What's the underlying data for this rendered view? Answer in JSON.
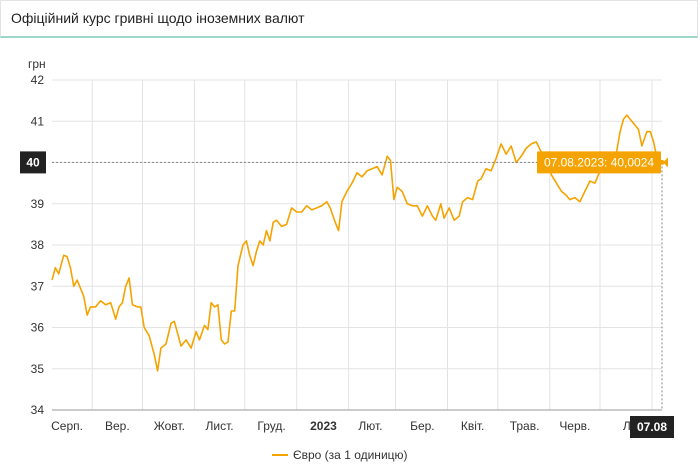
{
  "header": {
    "title": "Офіційний курс гривні щодо іноземних валют"
  },
  "colors": {
    "series": "#f5a300",
    "grid": "#e3e3e3",
    "axis": "#999999",
    "badge": "#222222",
    "tooltip": "#f5a300"
  },
  "chart_data": {
    "type": "line",
    "title": "",
    "xlabel": "",
    "ylabel": "грн",
    "ylim": [
      34,
      42
    ],
    "yticks": [
      34,
      35,
      36,
      37,
      38,
      39,
      40,
      41,
      42
    ],
    "xlim": [
      "2022-08-08",
      "2023-08-07"
    ],
    "xticks": [
      {
        "date": "2022-09-01",
        "label": "Серп."
      },
      {
        "date": "2022-10-01",
        "label": "Вер."
      },
      {
        "date": "2022-11-01",
        "label": "Жовт."
      },
      {
        "date": "2022-12-01",
        "label": "Лист."
      },
      {
        "date": "2023-01-01",
        "label": "Груд."
      },
      {
        "date": "2023-02-01",
        "label": "2023"
      },
      {
        "date": "2023-03-01",
        "label": "Лют."
      },
      {
        "date": "2023-04-01",
        "label": "Бер."
      },
      {
        "date": "2023-05-01",
        "label": "Квіт."
      },
      {
        "date": "2023-06-01",
        "label": "Трав."
      },
      {
        "date": "2023-07-01",
        "label": "Черв."
      },
      {
        "date": "2023-08-01",
        "label": "Л"
      }
    ],
    "grid": true,
    "legend_position": "bottom",
    "crosshair": {
      "date": "2023-08-07",
      "value": 40.0024,
      "y_badge": "40",
      "x_badge": "07.08",
      "tooltip": "07.08.2023: 40,0024"
    },
    "series": [
      {
        "name": "Євро (за 1 одиницю)",
        "points": [
          [
            "2022-08-08",
            37.15
          ],
          [
            "2022-08-10",
            37.45
          ],
          [
            "2022-08-12",
            37.3
          ],
          [
            "2022-08-15",
            37.75
          ],
          [
            "2022-08-17",
            37.72
          ],
          [
            "2022-08-19",
            37.45
          ],
          [
            "2022-08-21",
            37.0
          ],
          [
            "2022-08-23",
            37.15
          ],
          [
            "2022-08-25",
            36.95
          ],
          [
            "2022-08-27",
            36.75
          ],
          [
            "2022-08-29",
            36.3
          ],
          [
            "2022-08-31",
            36.5
          ],
          [
            "2022-09-03",
            36.5
          ],
          [
            "2022-09-06",
            36.65
          ],
          [
            "2022-09-09",
            36.55
          ],
          [
            "2022-09-12",
            36.6
          ],
          [
            "2022-09-15",
            36.2
          ],
          [
            "2022-09-17",
            36.5
          ],
          [
            "2022-09-19",
            36.6
          ],
          [
            "2022-09-21",
            37.0
          ],
          [
            "2022-09-23",
            37.2
          ],
          [
            "2022-09-25",
            36.55
          ],
          [
            "2022-09-28",
            36.5
          ],
          [
            "2022-09-30",
            36.5
          ],
          [
            "2022-10-02",
            36.0
          ],
          [
            "2022-10-05",
            35.8
          ],
          [
            "2022-10-08",
            35.35
          ],
          [
            "2022-10-10",
            34.95
          ],
          [
            "2022-10-12",
            35.5
          ],
          [
            "2022-10-15",
            35.6
          ],
          [
            "2022-10-18",
            36.1
          ],
          [
            "2022-10-20",
            36.15
          ],
          [
            "2022-10-22",
            35.85
          ],
          [
            "2022-10-24",
            35.55
          ],
          [
            "2022-10-27",
            35.7
          ],
          [
            "2022-10-30",
            35.5
          ],
          [
            "2022-11-02",
            35.9
          ],
          [
            "2022-11-04",
            35.7
          ],
          [
            "2022-11-07",
            36.05
          ],
          [
            "2022-11-09",
            35.95
          ],
          [
            "2022-11-11",
            36.6
          ],
          [
            "2022-11-13",
            36.5
          ],
          [
            "2022-11-15",
            36.55
          ],
          [
            "2022-11-17",
            35.7
          ],
          [
            "2022-11-19",
            35.6
          ],
          [
            "2022-11-21",
            35.65
          ],
          [
            "2022-11-23",
            36.4
          ],
          [
            "2022-11-25",
            36.4
          ],
          [
            "2022-11-27",
            37.5
          ],
          [
            "2022-11-30",
            38.0
          ],
          [
            "2022-12-02",
            38.1
          ],
          [
            "2022-12-04",
            37.75
          ],
          [
            "2022-12-06",
            37.5
          ],
          [
            "2022-12-08",
            37.85
          ],
          [
            "2022-12-10",
            38.1
          ],
          [
            "2022-12-12",
            38.0
          ],
          [
            "2022-12-14",
            38.35
          ],
          [
            "2022-12-16",
            38.1
          ],
          [
            "2022-12-18",
            38.55
          ],
          [
            "2022-12-20",
            38.6
          ],
          [
            "2022-12-23",
            38.45
          ],
          [
            "2022-12-26",
            38.5
          ],
          [
            "2022-12-29",
            38.9
          ],
          [
            "2023-01-01",
            38.8
          ],
          [
            "2023-01-04",
            38.8
          ],
          [
            "2023-01-07",
            38.95
          ],
          [
            "2023-01-10",
            38.85
          ],
          [
            "2023-01-13",
            38.9
          ],
          [
            "2023-01-16",
            38.95
          ],
          [
            "2023-01-19",
            39.05
          ],
          [
            "2023-01-21",
            38.9
          ],
          [
            "2023-01-24",
            38.55
          ],
          [
            "2023-01-26",
            38.35
          ],
          [
            "2023-01-28",
            39.05
          ],
          [
            "2023-01-31",
            39.3
          ],
          [
            "2023-02-03",
            39.5
          ],
          [
            "2023-02-06",
            39.75
          ],
          [
            "2023-02-09",
            39.65
          ],
          [
            "2023-02-12",
            39.8
          ],
          [
            "2023-02-15",
            39.85
          ],
          [
            "2023-02-18",
            39.9
          ],
          [
            "2023-02-21",
            39.7
          ],
          [
            "2023-02-24",
            40.15
          ],
          [
            "2023-02-26",
            40.05
          ],
          [
            "2023-02-28",
            39.1
          ],
          [
            "2023-03-02",
            39.4
          ],
          [
            "2023-03-05",
            39.3
          ],
          [
            "2023-03-08",
            39.0
          ],
          [
            "2023-03-11",
            38.95
          ],
          [
            "2023-03-14",
            38.95
          ],
          [
            "2023-03-17",
            38.7
          ],
          [
            "2023-03-20",
            38.95
          ],
          [
            "2023-03-23",
            38.7
          ],
          [
            "2023-03-25",
            38.6
          ],
          [
            "2023-03-28",
            39.0
          ],
          [
            "2023-03-30",
            38.65
          ],
          [
            "2023-04-02",
            38.9
          ],
          [
            "2023-04-05",
            38.6
          ],
          [
            "2023-04-08",
            38.7
          ],
          [
            "2023-04-10",
            39.05
          ],
          [
            "2023-04-13",
            39.15
          ],
          [
            "2023-04-16",
            39.1
          ],
          [
            "2023-04-19",
            39.55
          ],
          [
            "2023-04-21",
            39.6
          ],
          [
            "2023-04-24",
            39.85
          ],
          [
            "2023-04-27",
            39.8
          ],
          [
            "2023-04-30",
            40.1
          ],
          [
            "2023-05-03",
            40.45
          ],
          [
            "2023-05-06",
            40.2
          ],
          [
            "2023-05-09",
            40.4
          ],
          [
            "2023-05-12",
            40.0
          ],
          [
            "2023-05-15",
            40.15
          ],
          [
            "2023-05-18",
            40.35
          ],
          [
            "2023-05-21",
            40.45
          ],
          [
            "2023-05-24",
            40.5
          ],
          [
            "2023-05-27",
            40.25
          ],
          [
            "2023-05-30",
            40.1
          ],
          [
            "2023-06-02",
            39.7
          ],
          [
            "2023-06-05",
            39.5
          ],
          [
            "2023-06-08",
            39.3
          ],
          [
            "2023-06-11",
            39.2
          ],
          [
            "2023-06-13",
            39.1
          ],
          [
            "2023-06-16",
            39.15
          ],
          [
            "2023-06-19",
            39.05
          ],
          [
            "2023-06-22",
            39.3
          ],
          [
            "2023-06-25",
            39.55
          ],
          [
            "2023-06-28",
            39.5
          ],
          [
            "2023-07-01",
            39.8
          ],
          [
            "2023-07-04",
            39.75
          ],
          [
            "2023-07-07",
            39.9
          ],
          [
            "2023-07-10",
            40.05
          ],
          [
            "2023-07-13",
            40.75
          ],
          [
            "2023-07-15",
            41.05
          ],
          [
            "2023-07-17",
            41.15
          ],
          [
            "2023-07-19",
            41.05
          ],
          [
            "2023-07-22",
            40.9
          ],
          [
            "2023-07-24",
            40.8
          ],
          [
            "2023-07-26",
            40.4
          ],
          [
            "2023-07-29",
            40.75
          ],
          [
            "2023-07-31",
            40.75
          ],
          [
            "2023-08-02",
            40.5
          ],
          [
            "2023-08-04",
            40.1
          ],
          [
            "2023-08-07",
            40.0024
          ]
        ]
      }
    ]
  }
}
